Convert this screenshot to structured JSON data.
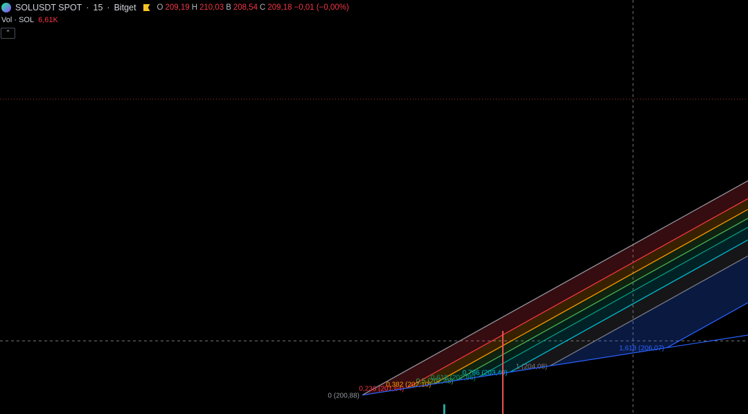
{
  "header": {
    "symbol": "SOLUSDT SPOT",
    "separator1": "·",
    "interval": "15",
    "separator2": "·",
    "exchange": "Bitget",
    "ohlc": {
      "o_key": "O",
      "o": "209,19",
      "h_key": "H",
      "h": "210,03",
      "b_key": "B",
      "b": "208,54",
      "c_key": "C",
      "c": "209,18",
      "change": "−0,01 (−0,00%)"
    }
  },
  "volume": {
    "label": "Vol · SOL",
    "value": "6,61K"
  },
  "collapse_glyph": "⌃",
  "colors": {
    "up": "#26a69a",
    "down": "#ef5350",
    "background": "#000000",
    "crosshair": "#9598a1"
  },
  "chart_data": {
    "type": "candlestick",
    "instrument": "SOLUSDT SPOT 15 Bitget",
    "price_range": [
      200.7,
      210.6
    ],
    "candles": [],
    "fib_channel": {
      "levels": [
        {
          "ratio": "0",
          "price": "200,88",
          "label": "0 (200,88)",
          "color": "#9598a1"
        },
        {
          "ratio": "0,236",
          "price": "201,64",
          "label": "0,236 (201,64)",
          "color": "#f23645"
        },
        {
          "ratio": "0,382",
          "price": "202,10",
          "label": "0,382 (202,10)",
          "color": "#ff9800"
        },
        {
          "ratio": "0,5",
          "price": "202,48",
          "label": "0,5 (202,48)",
          "color": "#4caf50"
        },
        {
          "ratio": "0,618",
          "price": "202,86",
          "label": "0,618 (202,86)",
          "color": "#089981"
        },
        {
          "ratio": "0,786",
          "price": "203,40",
          "label": "0,786 (203,40)",
          "color": "#00bcd4"
        },
        {
          "ratio": "1",
          "price": "204,08",
          "label": "1 (204,08)",
          "color": "#787b86"
        },
        {
          "ratio": "1,618",
          "price": "206,07",
          "label": "1,618 (206,07)",
          "color": "#2962ff"
        }
      ]
    },
    "crosshair_price": 202.4,
    "last_price_line": 209.18
  }
}
